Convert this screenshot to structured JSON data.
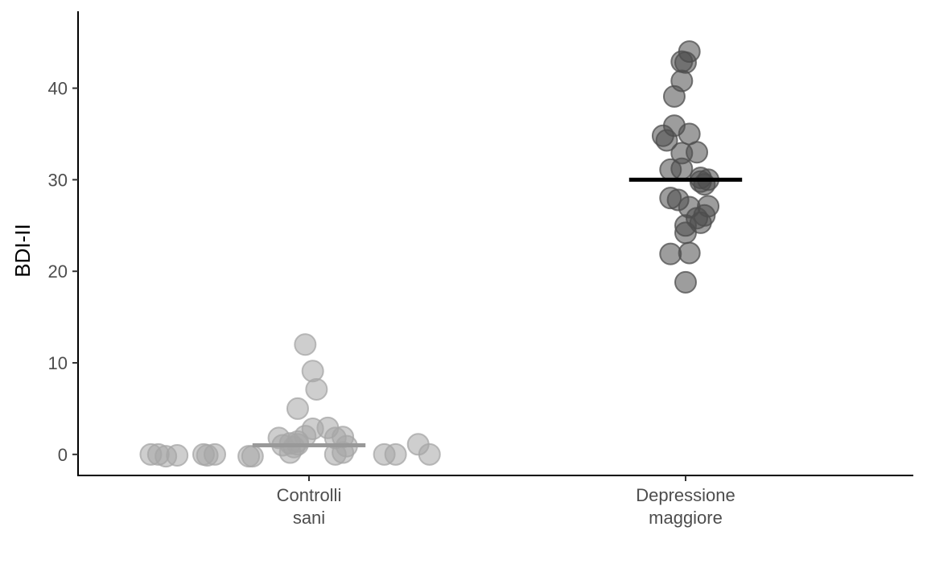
{
  "chart_data": {
    "type": "scatter",
    "title": "",
    "xlabel": "",
    "ylabel": "BDI-II",
    "ylim": [
      -2.3,
      48.4
    ],
    "yticks": [
      0,
      10,
      20,
      30,
      40
    ],
    "grid": false,
    "legend": "none",
    "categories": [
      {
        "key": "controls",
        "label_lines": [
          "Controlli",
          "sani"
        ]
      },
      {
        "key": "depression",
        "label_lines": [
          "Depressione",
          "maggiore"
        ]
      }
    ],
    "series": [
      {
        "category": "controls",
        "color": "#a6a6a6",
        "mean_color": "#999999",
        "mean": 1.0,
        "points": [
          {
            "offset": -0.42,
            "value": 0
          },
          {
            "offset": -0.4,
            "value": 0
          },
          {
            "offset": -0.38,
            "value": -0.2
          },
          {
            "offset": -0.35,
            "value": -0.1
          },
          {
            "offset": -0.28,
            "value": 0
          },
          {
            "offset": -0.27,
            "value": -0.1
          },
          {
            "offset": -0.25,
            "value": 0
          },
          {
            "offset": -0.16,
            "value": -0.2
          },
          {
            "offset": -0.15,
            "value": -0.2
          },
          {
            "offset": -0.08,
            "value": 1.8
          },
          {
            "offset": -0.07,
            "value": 1.0
          },
          {
            "offset": -0.05,
            "value": 0.2
          },
          {
            "offset": -0.05,
            "value": 1.2
          },
          {
            "offset": -0.04,
            "value": 0.8
          },
          {
            "offset": -0.03,
            "value": 1.4
          },
          {
            "offset": -0.03,
            "value": 1.1
          },
          {
            "offset": -0.03,
            "value": 5.0
          },
          {
            "offset": -0.01,
            "value": 12.0
          },
          {
            "offset": -0.01,
            "value": 2.0
          },
          {
            "offset": 0.01,
            "value": 2.8
          },
          {
            "offset": 0.01,
            "value": 9.1
          },
          {
            "offset": 0.02,
            "value": 7.1
          },
          {
            "offset": 0.05,
            "value": 2.9
          },
          {
            "offset": 0.07,
            "value": 1.8
          },
          {
            "offset": 0.07,
            "value": 0.0
          },
          {
            "offset": 0.09,
            "value": 0.2
          },
          {
            "offset": 0.09,
            "value": 1.9
          },
          {
            "offset": 0.1,
            "value": 0.9
          },
          {
            "offset": 0.2,
            "value": 0.0
          },
          {
            "offset": 0.23,
            "value": 0.0
          },
          {
            "offset": 0.29,
            "value": 1.1
          },
          {
            "offset": 0.32,
            "value": 0.0
          }
        ]
      },
      {
        "category": "depression",
        "color": "#4d4d4d",
        "mean_color": "#000000",
        "mean": 30.0,
        "points": [
          {
            "offset": 0.01,
            "value": 44.0
          },
          {
            "offset": -0.01,
            "value": 42.9
          },
          {
            "offset": 0.0,
            "value": 42.8
          },
          {
            "offset": -0.01,
            "value": 40.8
          },
          {
            "offset": -0.03,
            "value": 39.1
          },
          {
            "offset": -0.03,
            "value": 35.9
          },
          {
            "offset": -0.06,
            "value": 34.8
          },
          {
            "offset": -0.05,
            "value": 34.3
          },
          {
            "offset": 0.01,
            "value": 35.0
          },
          {
            "offset": 0.03,
            "value": 33.0
          },
          {
            "offset": -0.01,
            "value": 32.9
          },
          {
            "offset": -0.04,
            "value": 31.1
          },
          {
            "offset": -0.01,
            "value": 31.2
          },
          {
            "offset": 0.04,
            "value": 30.2
          },
          {
            "offset": 0.06,
            "value": 30.0
          },
          {
            "offset": 0.04,
            "value": 29.8
          },
          {
            "offset": 0.05,
            "value": 29.5
          },
          {
            "offset": -0.04,
            "value": 28.0
          },
          {
            "offset": -0.02,
            "value": 27.8
          },
          {
            "offset": 0.01,
            "value": 27.0
          },
          {
            "offset": 0.06,
            "value": 27.1
          },
          {
            "offset": 0.05,
            "value": 26.1
          },
          {
            "offset": 0.03,
            "value": 25.8
          },
          {
            "offset": 0.04,
            "value": 25.3
          },
          {
            "offset": 0.0,
            "value": 25.0
          },
          {
            "offset": 0.0,
            "value": 24.2
          },
          {
            "offset": -0.04,
            "value": 21.9
          },
          {
            "offset": 0.01,
            "value": 22.0
          },
          {
            "offset": 0.0,
            "value": 18.8
          }
        ]
      }
    ],
    "mean_line_half_width": 0.3
  }
}
